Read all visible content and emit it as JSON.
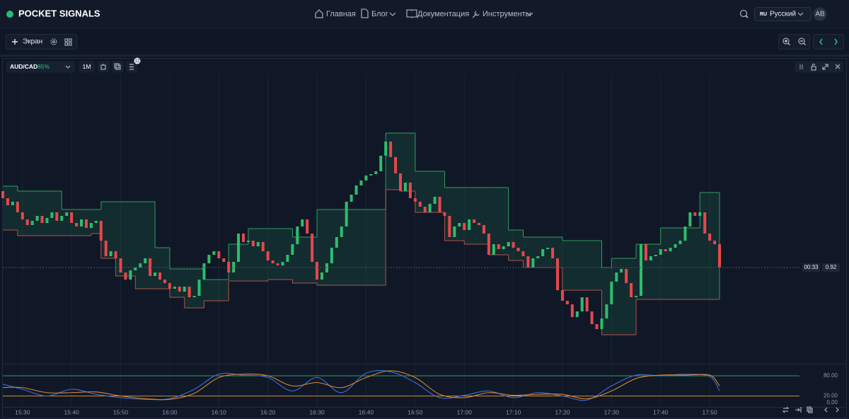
{
  "header": {
    "brand": "POCKET SIGNALS",
    "nav": [
      "Главная",
      "Блог",
      "Документация",
      "Инструменты"
    ],
    "lang_code": "RU",
    "lang": "Русский",
    "avatar": "AB"
  },
  "toolbar": {
    "screen": "Экран"
  },
  "pane": {
    "symbol": "AUD/CAD",
    "payout": "85%",
    "timeframe": "1M",
    "badge": "12",
    "countdown": "00:33"
  },
  "chart_data": [
    {
      "type": "candlestick",
      "x": [
        "15:26",
        "15:27",
        "15:28",
        "15:29",
        "15:30",
        "15:31",
        "15:32",
        "15:33",
        "15:34",
        "15:35",
        "15:36",
        "15:37",
        "15:38",
        "15:39",
        "15:40",
        "15:41",
        "15:42",
        "15:43",
        "15:44",
        "15:45",
        "15:46",
        "15:47",
        "15:48",
        "15:49",
        "15:50",
        "15:51",
        "15:52",
        "15:53",
        "15:54",
        "15:55",
        "15:56",
        "15:57",
        "15:58",
        "15:59",
        "16:00",
        "16:01",
        "16:02",
        "16:03",
        "16:04",
        "16:05",
        "16:06",
        "16:07",
        "16:08",
        "16:09",
        "16:10",
        "16:11",
        "16:12",
        "16:13",
        "16:14",
        "16:15",
        "16:16",
        "16:17",
        "16:18",
        "16:19",
        "16:20",
        "16:21",
        "16:22",
        "16:23",
        "16:24",
        "16:25",
        "16:26",
        "16:27",
        "16:28",
        "16:29",
        "16:30",
        "16:31",
        "16:32",
        "16:33",
        "16:34",
        "16:35",
        "16:36",
        "16:37",
        "16:38",
        "16:39",
        "16:40",
        "16:41",
        "16:42",
        "16:43",
        "16:44",
        "16:45",
        "16:46",
        "16:47",
        "16:48",
        "16:49",
        "16:50",
        "16:51",
        "16:52",
        "16:53",
        "16:54",
        "16:55",
        "16:56",
        "16:57",
        "16:58",
        "16:59",
        "17:00",
        "17:01",
        "17:02",
        "17:03",
        "17:04",
        "17:05",
        "17:06",
        "17:07",
        "17:08",
        "17:09",
        "17:10",
        "17:11",
        "17:12",
        "17:13",
        "17:14",
        "17:15",
        "17:16",
        "17:17",
        "17:18",
        "17:19",
        "17:20",
        "17:21",
        "17:22",
        "17:23",
        "17:24",
        "17:25",
        "17:26",
        "17:27",
        "17:28",
        "17:29",
        "17:30",
        "17:31",
        "17:32",
        "17:33",
        "17:34",
        "17:35",
        "17:36",
        "17:37",
        "17:38",
        "17:39",
        "17:40",
        "17:41",
        "17:42",
        "17:43",
        "17:44",
        "17:45",
        "17:46",
        "17:47",
        "17:48",
        "17:49",
        "17:50",
        "17:51",
        "17:52"
      ],
      "open": [
        0.92108,
        0.92098,
        0.92088,
        0.92093,
        0.92078,
        0.92068,
        0.9206,
        0.92066,
        0.92073,
        0.92063,
        0.9207,
        0.92078,
        0.92066,
        0.92073,
        0.92078,
        0.92063,
        0.92058,
        0.92068,
        0.92056,
        0.92063,
        0.92066,
        0.92038,
        0.92016,
        0.92023,
        0.92013,
        0.91993,
        0.91983,
        0.91996,
        0.92,
        0.92006,
        0.92013,
        0.91988,
        0.91993,
        0.91983,
        0.91978,
        0.9197,
        0.91973,
        0.91966,
        0.91973,
        0.91958,
        0.9196,
        0.91983,
        0.92006,
        0.92018,
        0.92023,
        0.92013,
        0.92008,
        0.91993,
        0.92008,
        0.92048,
        0.92036,
        0.92038,
        0.9203,
        0.92036,
        0.92023,
        0.9201,
        0.92006,
        0.92003,
        0.92008,
        0.92018,
        0.92033,
        0.92058,
        0.92068,
        0.92048,
        0.92008,
        0.91983,
        0.91993,
        0.92006,
        0.92028,
        0.92043,
        0.92058,
        0.92093,
        0.92103,
        0.92116,
        0.92123,
        0.9213,
        0.92132,
        0.92136,
        0.92158,
        0.92178,
        0.92156,
        0.92133,
        0.92108,
        0.9212,
        0.92098,
        0.92093,
        0.92086,
        0.92078,
        0.9209,
        0.921,
        0.92078,
        0.92073,
        0.92043,
        0.92058,
        0.92063,
        0.92053,
        0.92068,
        0.92063,
        0.9206,
        0.92048,
        0.92018,
        0.92033,
        0.92026,
        0.9203,
        0.92036,
        0.92028,
        0.92023,
        0.92016,
        0.92,
        0.92013,
        0.92016,
        0.92026,
        0.92028,
        0.92013,
        0.91968,
        0.91953,
        0.91948,
        0.9193,
        0.91938,
        0.91958,
        0.91938,
        0.9192,
        0.91913,
        0.91928,
        0.91948,
        0.9198,
        0.91993,
        0.91998,
        0.91978,
        0.91958,
        0.9196,
        0.92033,
        0.9201,
        0.92016,
        0.92018,
        0.92026,
        0.92023,
        0.92028,
        0.92033,
        0.92038,
        0.92058,
        0.92078,
        0.92073,
        0.92078,
        0.92048,
        0.92038,
        0.92033
      ],
      "close": [
        0.92098,
        0.92088,
        0.92093,
        0.92078,
        0.92068,
        0.9206,
        0.92066,
        0.92073,
        0.92063,
        0.9207,
        0.92078,
        0.92066,
        0.92073,
        0.92078,
        0.92063,
        0.92058,
        0.92068,
        0.92056,
        0.92063,
        0.92066,
        0.92038,
        0.92016,
        0.92023,
        0.92013,
        0.91993,
        0.91983,
        0.91996,
        0.92,
        0.92006,
        0.92013,
        0.91988,
        0.91993,
        0.91983,
        0.91978,
        0.9197,
        0.91973,
        0.91966,
        0.91973,
        0.91958,
        0.9196,
        0.91983,
        0.92006,
        0.92018,
        0.92023,
        0.92013,
        0.92008,
        0.91993,
        0.92008,
        0.92048,
        0.92036,
        0.92038,
        0.9203,
        0.92036,
        0.92023,
        0.9201,
        0.92006,
        0.92003,
        0.92008,
        0.92018,
        0.92033,
        0.92058,
        0.92068,
        0.92048,
        0.92008,
        0.91983,
        0.91993,
        0.92006,
        0.92028,
        0.92043,
        0.92058,
        0.92093,
        0.92103,
        0.92116,
        0.92123,
        0.9213,
        0.92132,
        0.92136,
        0.92158,
        0.92178,
        0.92156,
        0.92133,
        0.92108,
        0.9212,
        0.92098,
        0.92093,
        0.92086,
        0.92078,
        0.9209,
        0.921,
        0.92078,
        0.92073,
        0.92043,
        0.92058,
        0.92063,
        0.92053,
        0.92068,
        0.92063,
        0.9206,
        0.92048,
        0.92018,
        0.92033,
        0.92026,
        0.9203,
        0.92036,
        0.92028,
        0.92023,
        0.92016,
        0.92,
        0.92013,
        0.92016,
        0.92026,
        0.92028,
        0.92013,
        0.91968,
        0.91953,
        0.91948,
        0.9193,
        0.91938,
        0.91958,
        0.91938,
        0.9192,
        0.91913,
        0.91928,
        0.91948,
        0.9198,
        0.91993,
        0.91998,
        0.91978,
        0.91958,
        0.9196,
        0.92033,
        0.9201,
        0.92016,
        0.92018,
        0.92026,
        0.92023,
        0.92028,
        0.92033,
        0.92038,
        0.92058,
        0.92078,
        0.92073,
        0.92078,
        0.92048,
        0.92038,
        0.92033,
        0.92
      ],
      "up_color": "#2ebd6b",
      "down_color": "#e5484d",
      "ylim": [
        0.91866,
        0.92273
      ],
      "xticks": [
        "15:30",
        "15:40",
        "15:50",
        "16:00",
        "16:10",
        "16:20",
        "16:30",
        "16:40",
        "16:50",
        "17:00",
        "17:10",
        "17:20",
        "17:30",
        "17:40",
        "17:50"
      ],
      "band": {
        "x": [
          "15:26",
          "15:29",
          "15:38",
          "15:44",
          "15:46",
          "15:49",
          "15:53",
          "15:57",
          "16:00",
          "16:03",
          "16:07",
          "16:12",
          "16:16",
          "16:20",
          "16:25",
          "16:30",
          "16:44",
          "16:47",
          "16:50",
          "16:56",
          "17:00",
          "17:05",
          "17:09",
          "17:12",
          "17:20",
          "17:28",
          "17:30",
          "17:35",
          "17:40",
          "17:48"
        ],
        "upper": [
          0.92115,
          0.92108,
          0.92082,
          0.92082,
          0.92093,
          0.92093,
          0.92093,
          0.92028,
          0.91998,
          0.91998,
          0.91983,
          0.92033,
          0.92055,
          0.92055,
          0.92043,
          0.92082,
          0.9219,
          0.9219,
          0.92136,
          0.92113,
          0.92113,
          0.92113,
          0.92053,
          0.92043,
          0.92038,
          0.92,
          0.92013,
          0.92033,
          0.92056,
          0.92106
        ],
        "lower": [
          0.92053,
          0.92045,
          0.92045,
          0.92048,
          0.92013,
          0.91988,
          0.9197,
          0.9197,
          0.91958,
          0.91943,
          0.91953,
          0.91981,
          0.91981,
          0.91983,
          0.91978,
          0.91975,
          0.9211,
          0.92108,
          0.92078,
          0.92038,
          0.92033,
          0.92018,
          0.9201,
          0.92,
          0.91968,
          0.91905,
          0.91905,
          0.91955,
          0.91955,
          0.91955
        ],
        "upper_color": "#2e9e62",
        "lower_color": "#b5524a",
        "fill": "rgba(38,150,100,0.16)"
      },
      "last_price": 0.92
    },
    {
      "type": "line",
      "x": [
        "15:26",
        "15:30",
        "15:35",
        "15:40",
        "15:45",
        "15:50",
        "15:55",
        "16:00",
        "16:05",
        "16:10",
        "16:15",
        "16:20",
        "16:25",
        "16:30",
        "16:35",
        "16:40",
        "16:45",
        "16:50",
        "16:55",
        "17:00",
        "17:05",
        "17:10",
        "17:15",
        "17:20",
        "17:25",
        "17:30",
        "17:35",
        "17:40",
        "17:45",
        "17:50",
        "17:52"
      ],
      "series": [
        {
          "color": "#3d6fd8",
          "values": [
            55,
            40,
            20,
            40,
            25,
            15,
            10,
            12,
            40,
            85,
            82,
            75,
            35,
            75,
            30,
            88,
            92,
            60,
            15,
            22,
            35,
            15,
            30,
            20,
            8,
            50,
            82,
            80,
            85,
            78,
            35
          ]
        },
        {
          "color": "#e0852e",
          "values": [
            45,
            45,
            30,
            30,
            32,
            20,
            12,
            10,
            28,
            75,
            85,
            80,
            50,
            60,
            45,
            75,
            95,
            75,
            25,
            15,
            30,
            22,
            25,
            25,
            12,
            35,
            72,
            82,
            82,
            82,
            50
          ]
        }
      ],
      "ylim": [
        0,
        100
      ],
      "yticks": [
        {
          "value": 80,
          "label": "80.00"
        },
        {
          "value": 20,
          "label": "20.00"
        },
        {
          "value": 0,
          "label": "0.00"
        }
      ],
      "levels": [
        {
          "value": 80,
          "color": "#2e9e62"
        },
        {
          "value": 20,
          "color": "#d08a2a"
        }
      ]
    }
  ]
}
